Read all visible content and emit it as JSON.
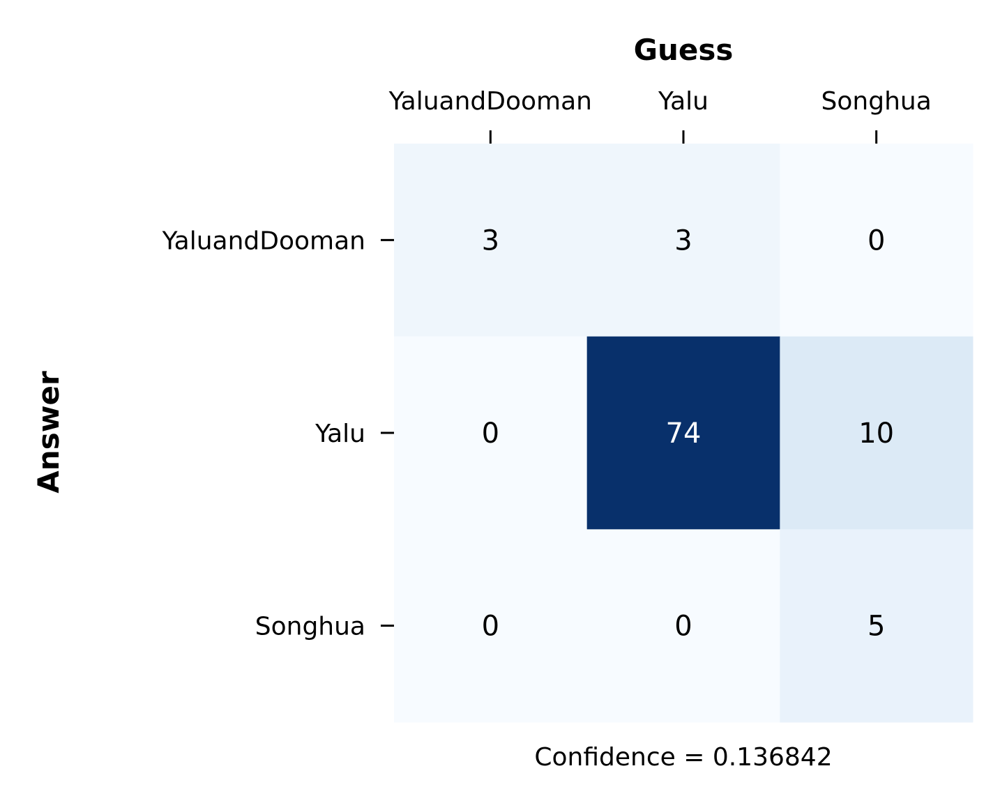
{
  "chart_data": {
    "type": "heatmap",
    "title": "",
    "x_title": "Guess",
    "y_title": "Answer",
    "x_categories": [
      "YaluandDooman",
      "Yalu",
      "Songhua"
    ],
    "y_categories": [
      "YaluandDooman",
      "Yalu",
      "Songhua"
    ],
    "values": [
      [
        3,
        3,
        0
      ],
      [
        0,
        74,
        10
      ],
      [
        0,
        0,
        5
      ]
    ],
    "color_scale": "Blues",
    "color_min": "#f7fbff",
    "color_max": "#08306b",
    "x_axis_position": "top",
    "colorbar": false,
    "grid": false,
    "footer": "Confidence = 0.136842"
  }
}
